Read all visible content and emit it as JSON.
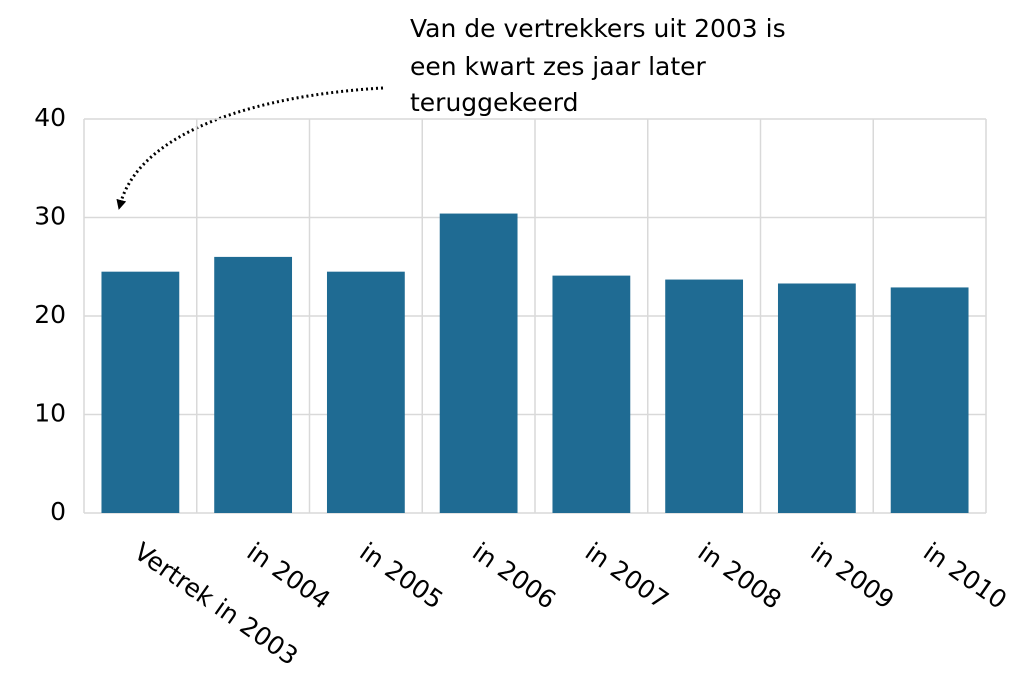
{
  "chart_data": {
    "type": "bar",
    "annotation": [
      "Van de vertrekkers uit 2003 is",
      "een kwart zes jaar later",
      "teruggekeerd"
    ],
    "categories": [
      "Vertrek in 2003",
      "in 2004",
      "in 2005",
      "in 2006",
      "in 2007",
      "in 2008",
      "in 2009",
      "in 2010"
    ],
    "values": [
      24.5,
      26.0,
      24.5,
      30.4,
      24.1,
      23.7,
      23.3,
      22.9
    ],
    "color": "#1f6b93",
    "ylim": [
      0,
      40
    ],
    "yticks": [
      0,
      10,
      20,
      30,
      40
    ],
    "grid": true
  }
}
